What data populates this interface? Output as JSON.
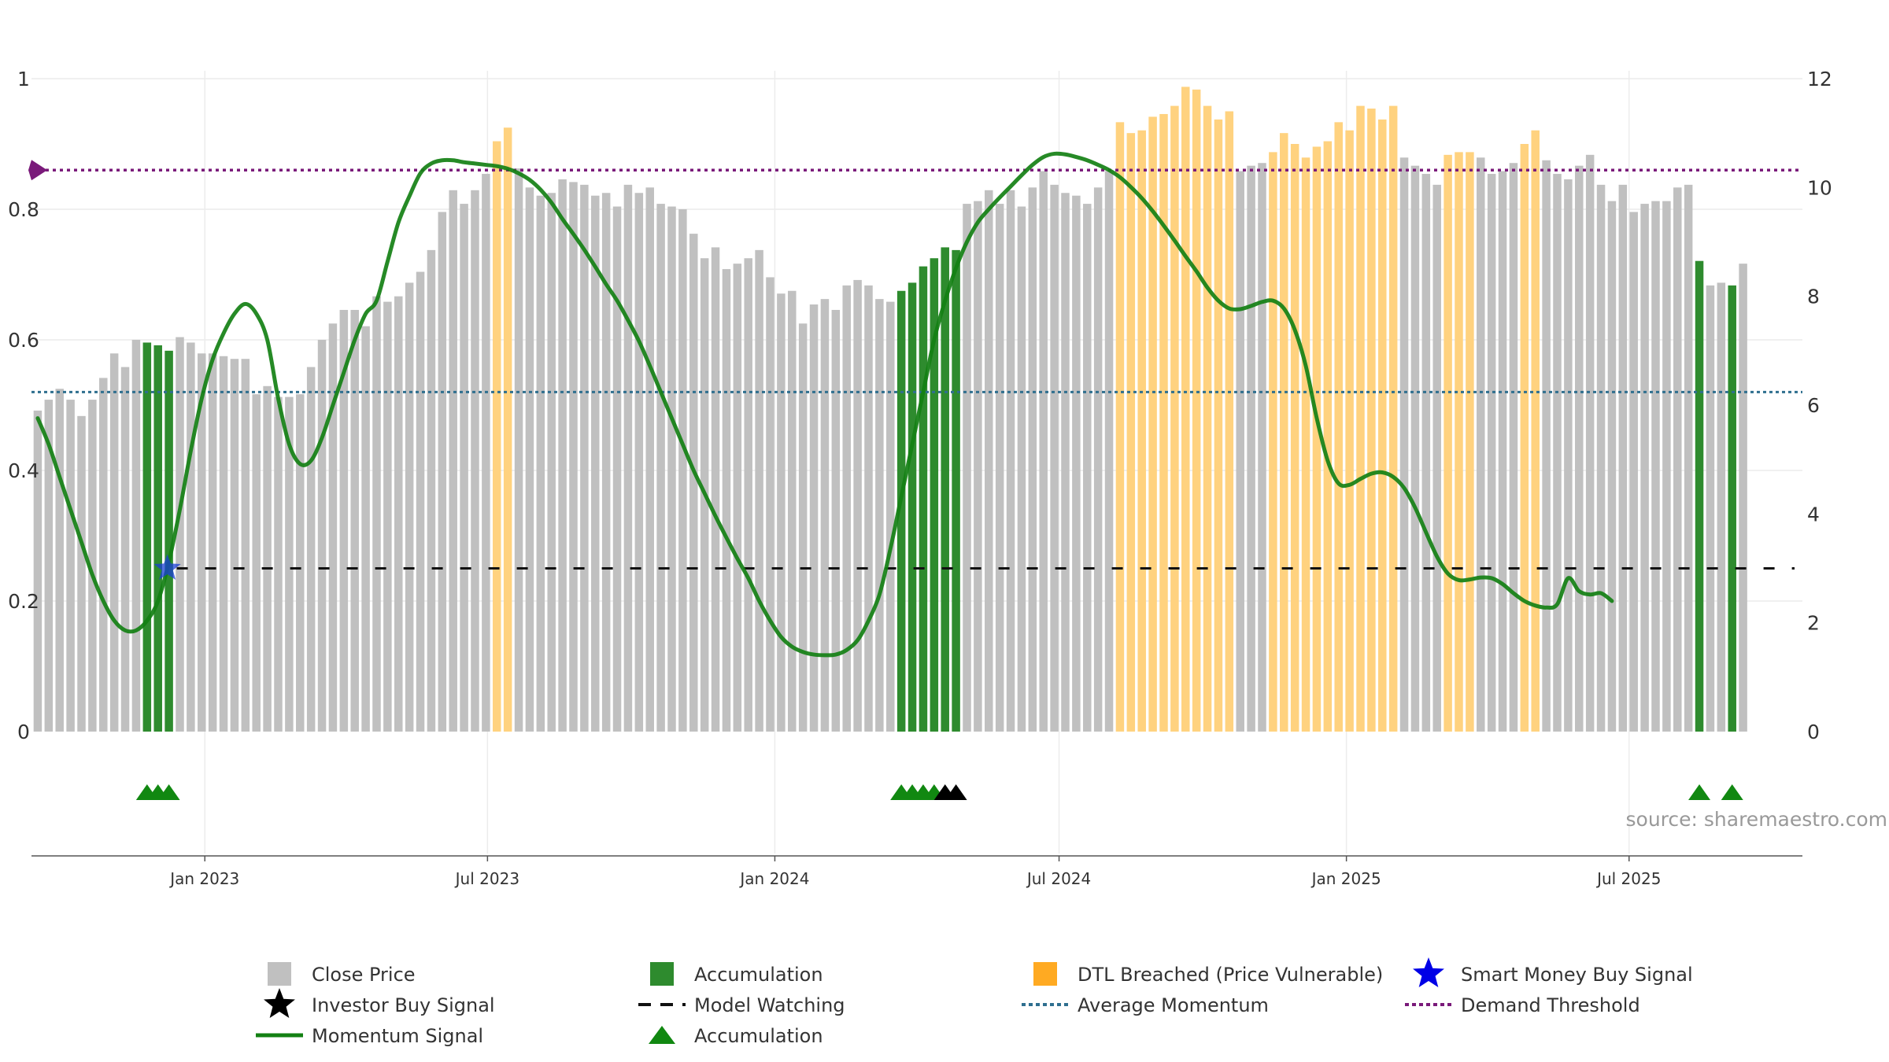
{
  "chart_data": {
    "type": "bar",
    "title": "",
    "xlabel": "",
    "ylabel": "",
    "source": "source: sharemaestro.com",
    "x_start": "2022-09-16",
    "x_ticks": [
      "Jan 2023",
      "Jul 2023",
      "Jan 2024",
      "Jul 2024",
      "Jan 2025",
      "Jul 2025"
    ],
    "x_tick_dates": [
      "2023-01-01",
      "2023-07-01",
      "2024-01-01",
      "2024-07-01",
      "2025-01-01",
      "2025-07-01"
    ],
    "x_range": [
      "2022-09-12",
      "2025-10-20"
    ],
    "y_left": {
      "min": 0,
      "max": 1,
      "ticks": [
        0,
        0.2,
        0.4,
        0.6,
        0.8,
        1
      ],
      "tick_labels": [
        "0",
        "0.2",
        "0.4",
        "0.6",
        "0.8",
        "1"
      ]
    },
    "y_right": {
      "min": 0,
      "max": 12,
      "ticks": [
        0,
        2,
        4,
        6,
        8,
        10,
        12
      ],
      "tick_labels": [
        "0",
        "2",
        "4",
        "6",
        "8",
        "10",
        "12"
      ]
    },
    "close_price": [
      5.9,
      6.1,
      6.3,
      6.1,
      5.8,
      6.1,
      6.5,
      6.95,
      6.7,
      7.2,
      7.15,
      7.1,
      7.0,
      7.25,
      7.15,
      6.95,
      6.95,
      6.9,
      6.85,
      6.85,
      6.2,
      6.35,
      6.15,
      6.15,
      6.2,
      6.7,
      7.2,
      7.5,
      7.75,
      7.75,
      7.45,
      8.0,
      7.9,
      8.0,
      8.25,
      8.45,
      8.85,
      9.55,
      9.95,
      9.7,
      9.95,
      10.25,
      10.85,
      11.1,
      10.35,
      10.0,
      9.85,
      9.9,
      10.15,
      10.1,
      10.05,
      9.85,
      9.9,
      9.65,
      10.05,
      9.9,
      10.0,
      9.7,
      9.65,
      9.6,
      9.15,
      8.7,
      8.9,
      8.5,
      8.6,
      8.7,
      8.85,
      8.35,
      8.05,
      8.1,
      7.5,
      7.85,
      7.95,
      7.75,
      8.2,
      8.3,
      8.2,
      7.95,
      7.9,
      8.1,
      8.25,
      8.55,
      8.7,
      8.9,
      8.85,
      9.7,
      9.75,
      9.95,
      9.7,
      9.95,
      9.65,
      10.0,
      10.3,
      10.05,
      9.9,
      9.85,
      9.7,
      10.0,
      10.3,
      11.2,
      11.0,
      11.05,
      11.3,
      11.35,
      11.5,
      11.85,
      11.8,
      11.5,
      11.25,
      11.4,
      10.3,
      10.4,
      10.45,
      10.65,
      11.0,
      10.8,
      10.55,
      10.75,
      10.85,
      11.2,
      11.05,
      11.5,
      11.45,
      11.25,
      11.5,
      10.55,
      10.4,
      10.25,
      10.05,
      10.6,
      10.65,
      10.65,
      10.55,
      10.25,
      10.3,
      10.45,
      10.8,
      11.05,
      10.5,
      10.25,
      10.15,
      10.4,
      10.6,
      10.05,
      9.75,
      10.05,
      9.55,
      9.7,
      9.75,
      9.75,
      10.0,
      10.05,
      8.65,
      8.2,
      8.25,
      8.2,
      8.6
    ],
    "bar_category": [
      "p",
      "p",
      "p",
      "p",
      "p",
      "p",
      "p",
      "p",
      "p",
      "p",
      "a",
      "a",
      "a",
      "p",
      "p",
      "p",
      "p",
      "p",
      "p",
      "p",
      "p",
      "p",
      "p",
      "p",
      "p",
      "p",
      "p",
      "p",
      "p",
      "p",
      "p",
      "p",
      "p",
      "p",
      "p",
      "p",
      "p",
      "p",
      "p",
      "p",
      "p",
      "p",
      "d",
      "d",
      "p",
      "p",
      "p",
      "p",
      "p",
      "p",
      "p",
      "p",
      "p",
      "p",
      "p",
      "p",
      "p",
      "p",
      "p",
      "p",
      "p",
      "p",
      "p",
      "p",
      "p",
      "p",
      "p",
      "p",
      "p",
      "p",
      "p",
      "p",
      "p",
      "p",
      "p",
      "p",
      "p",
      "p",
      "p",
      "a",
      "a",
      "a",
      "a",
      "a",
      "a",
      "p",
      "p",
      "p",
      "p",
      "p",
      "p",
      "p",
      "p",
      "p",
      "p",
      "p",
      "p",
      "p",
      "p",
      "d",
      "d",
      "d",
      "d",
      "d",
      "d",
      "d",
      "d",
      "d",
      "d",
      "d",
      "p",
      "p",
      "p",
      "d",
      "d",
      "d",
      "d",
      "d",
      "d",
      "d",
      "d",
      "d",
      "d",
      "d",
      "d",
      "p",
      "p",
      "p",
      "p",
      "d",
      "d",
      "d",
      "p",
      "p",
      "p",
      "p",
      "d",
      "d",
      "p",
      "p",
      "p",
      "p",
      "p",
      "p",
      "p",
      "p",
      "p",
      "p",
      "p",
      "p",
      "p",
      "p",
      "a",
      "p",
      "p",
      "a",
      "p"
    ],
    "momentum": [
      0.48,
      0.44,
      0.39,
      0.34,
      0.29,
      0.24,
      0.2,
      0.17,
      0.155,
      0.155,
      0.17,
      0.2,
      0.26,
      0.34,
      0.43,
      0.51,
      0.57,
      0.61,
      0.64,
      0.655,
      0.64,
      0.6,
      0.51,
      0.44,
      0.41,
      0.415,
      0.45,
      0.5,
      0.55,
      0.6,
      0.64,
      0.66,
      0.72,
      0.78,
      0.82,
      0.855,
      0.87,
      0.875,
      0.875,
      0.872,
      0.87,
      0.868,
      0.866,
      0.862,
      0.855,
      0.845,
      0.83,
      0.81,
      0.785,
      0.762,
      0.738,
      0.712,
      0.685,
      0.66,
      0.63,
      0.598,
      0.56,
      0.52,
      0.48,
      0.44,
      0.4,
      0.365,
      0.33,
      0.297,
      0.265,
      0.235,
      0.2,
      0.17,
      0.145,
      0.13,
      0.122,
      0.118,
      0.117,
      0.118,
      0.125,
      0.14,
      0.17,
      0.21,
      0.28,
      0.36,
      0.44,
      0.52,
      0.6,
      0.66,
      0.71,
      0.75,
      0.78,
      0.8,
      0.818,
      0.835,
      0.852,
      0.868,
      0.88,
      0.885,
      0.884,
      0.88,
      0.875,
      0.868,
      0.86,
      0.849,
      0.834,
      0.817,
      0.797,
      0.775,
      0.752,
      0.728,
      0.705,
      0.68,
      0.66,
      0.648,
      0.647,
      0.652,
      0.658,
      0.66,
      0.648,
      0.615,
      0.56,
      0.48,
      0.415,
      0.38,
      0.378,
      0.387,
      0.395,
      0.397,
      0.39,
      0.373,
      0.343,
      0.305,
      0.268,
      0.242,
      0.232,
      0.233,
      0.236,
      0.235,
      0.226,
      0.212,
      0.2,
      0.193,
      0.19,
      0.195,
      0.235,
      0.215,
      0.21,
      0.212,
      0.2
    ],
    "average_momentum": 0.52,
    "demand_threshold": 0.86,
    "model_watching": 0.25,
    "model_watching_start_week": 12,
    "smart_money_buy_signals": [
      {
        "week": 12,
        "value": 0.25
      }
    ],
    "accumulation_markers_weeks": [
      10,
      11,
      12,
      79,
      80,
      81,
      82,
      152,
      155
    ],
    "investor_buy_markers_weeks": [
      83,
      84
    ],
    "series_colors": {
      "close_price": "#c0c0c0",
      "accumulation": "#2e8b2e",
      "dtl_breached": "#ffd27f",
      "momentum": "#138013",
      "average_momentum": "#2f6f8f",
      "demand_threshold": "#7a1a7a",
      "model_watching": "#111111",
      "smart_money": "#1b3fd6",
      "investor_buy": "#000000"
    },
    "legend": [
      [
        "Close Price",
        "Accumulation",
        "DTL Breached (Price Vulnerable)",
        "Smart Money Buy Signal"
      ],
      [
        "Investor Buy Signal",
        "Model Watching",
        "Average Momentum",
        "Demand Threshold"
      ],
      [
        "Momentum Signal",
        "Accumulation"
      ]
    ],
    "legend_placement": "bottom"
  }
}
